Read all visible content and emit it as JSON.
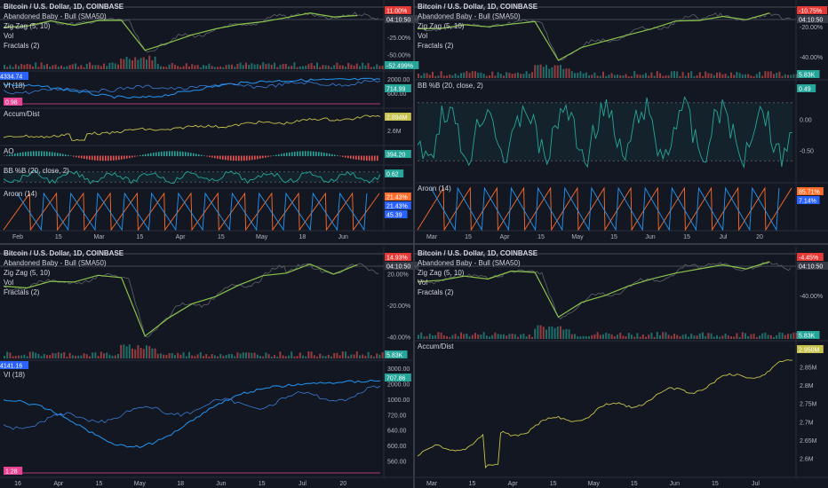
{
  "colors": {
    "background": "#131722",
    "grid": "#2a2e39",
    "price_line": "#5f6368",
    "zigzag": "#8bc34a",
    "adl": "#2196f3",
    "vi_plus": "#3a7bd5",
    "vi_minus": "#e84393",
    "accum": "#c6c24b",
    "bb": "#26a69a",
    "aroon_up": "#ff6d2a",
    "aroon_down": "#2196f3",
    "vol_up": "#26a69a",
    "vol_down": "#ef5350",
    "tag_red": "#e53935",
    "tag_green": "#26a69a",
    "tag_blue": "#2962ff"
  },
  "panels": [
    {
      "id": "top-left",
      "legend": {
        "title": "Bitcoin / U.S. Dollar, 1D, COINBASE",
        "items": [
          "Abandoned Baby - Bull (SMA50)",
          "Zig Zag (5, 10)",
          "Vol",
          "Fractals (2)"
        ]
      },
      "price_axis": [
        "25.00%",
        "-25.00%",
        "-50.00%"
      ],
      "price_tags": [
        "11.00%",
        "04:10:50",
        "-52.499%"
      ],
      "sub_panes": [
        {
          "labels": [
            "ADL",
            "VI (18)"
          ],
          "axis": [
            "2000.00",
            "600.00"
          ],
          "tags": [
            "4334.74",
            "714.99",
            "0.98"
          ]
        },
        {
          "labels": [
            "Accum/Dist"
          ],
          "axis": [
            "2.8M",
            "2.6M"
          ],
          "tags": [
            "2.894M"
          ]
        },
        {
          "labels": [
            "AO"
          ],
          "axis": [],
          "tags": [
            "394.20"
          ]
        },
        {
          "labels": [
            "BB %B (20, close, 2)"
          ],
          "axis": [
            "0.00"
          ],
          "tags": [
            "0.62"
          ]
        },
        {
          "labels": [
            "Aroon (14)"
          ],
          "axis": [],
          "tags": [
            "21.43%",
            "21.43%",
            "45.39"
          ]
        }
      ],
      "time_axis": [
        "Feb",
        "15",
        "Mar",
        "15",
        "Apr",
        "15",
        "May",
        "18",
        "Jun"
      ]
    },
    {
      "id": "top-right",
      "legend": {
        "title": "Bitcoin / U.S. Dollar, 1D, COINBASE",
        "items": [
          "Abandoned Baby - Bull (SMA50)",
          "Zig Zag (5, 10)",
          "Vol",
          "Fractals (2)"
        ]
      },
      "price_axis": [
        "-20.00%",
        "-40.00%"
      ],
      "price_tags": [
        "-10.75%",
        "04:10:50",
        "5.83K"
      ],
      "sub_panes": [
        {
          "labels": [
            "BB %B (20, close, 2)"
          ],
          "axis": [
            "1.00",
            "0.00",
            "-0.50"
          ],
          "tags": [
            "0.49"
          ]
        },
        {
          "labels": [
            "Aroon (14)"
          ],
          "axis": [
            "50.00%"
          ],
          "tags": [
            "85.71%",
            "7.14%"
          ]
        }
      ],
      "time_axis": [
        "Mar",
        "15",
        "Apr",
        "15",
        "May",
        "15",
        "Jun",
        "15",
        "Jul",
        "20"
      ]
    },
    {
      "id": "bottom-left",
      "legend": {
        "title": "Bitcoin / U.S. Dollar, 1D, COINBASE",
        "items": [
          "Abandoned Baby - Bull (SMA50)",
          "Zig Zag (5, 10)",
          "Vol",
          "Fractals (2)"
        ]
      },
      "price_axis": [
        "20.00%",
        "-20.00%",
        "-40.00%"
      ],
      "price_tags": [
        "14.93%",
        "04:10:50",
        "5.83K"
      ],
      "sub_panes": [
        {
          "labels": [
            "ADL",
            "VI (18)"
          ],
          "axis": [
            "3000.00",
            "2000.00",
            "1000.00",
            "720.00",
            "640.00",
            "600.00",
            "560.00"
          ],
          "tags": [
            "4141.16",
            "707.86",
            "1.28"
          ]
        }
      ],
      "time_axis": [
        "16",
        "Apr",
        "15",
        "May",
        "18",
        "Jun",
        "15",
        "Jul",
        "20"
      ]
    },
    {
      "id": "bottom-right",
      "legend": {
        "title": "Bitcoin / U.S. Dollar, 1D, COINBASE",
        "items": [
          "Abandoned Baby - Bull (SMA50)",
          "Zig Zag (5, 10)",
          "Vol",
          "Fractals (2)"
        ]
      },
      "price_axis": [
        "-40.00%"
      ],
      "price_tags": [
        "-4.45%",
        "04:10:50",
        "5.83K"
      ],
      "sub_panes": [
        {
          "labels": [
            "Accum/Dist"
          ],
          "axis": [
            "2.9M",
            "2.85M",
            "2.8M",
            "2.75M",
            "2.7M",
            "2.65M",
            "2.6M"
          ],
          "tags": [
            "2.950M"
          ]
        }
      ],
      "time_axis": [
        "Mar",
        "15",
        "Apr",
        "15",
        "May",
        "15",
        "Jun",
        "15",
        "Jul"
      ]
    }
  ]
}
